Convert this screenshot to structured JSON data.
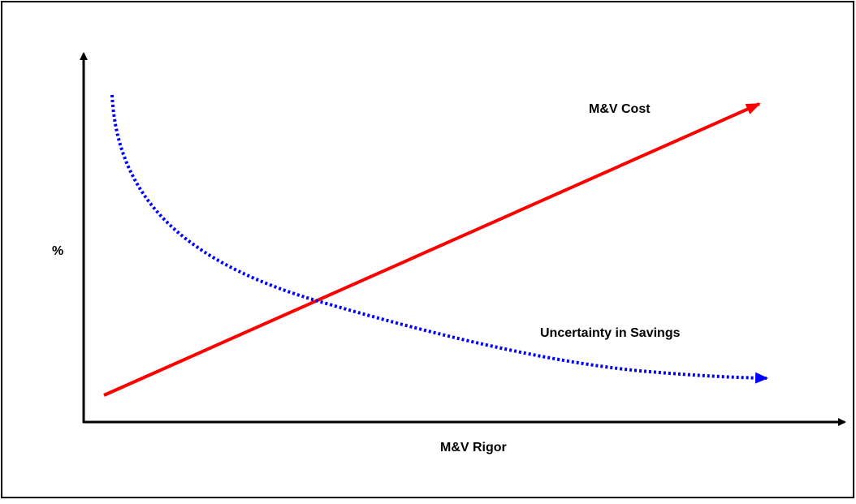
{
  "labels": {
    "cost": "M&V Cost",
    "uncertainty": "Uncertainty in Savings",
    "y_axis": "%",
    "x_axis": "M&V Rigor"
  }
}
